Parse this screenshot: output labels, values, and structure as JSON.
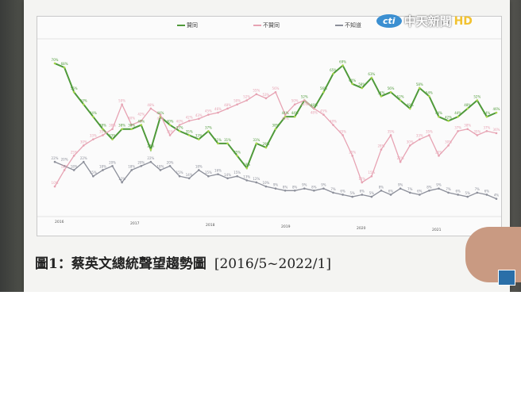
{
  "broadcaster": {
    "logo_text": "cti",
    "name": "中天新聞",
    "hd": "HD"
  },
  "figure": {
    "title": "圖1：蔡英文總統聲望趨勢圖",
    "range": "[2016/5~2022/1]"
  },
  "colors": {
    "approve": "#4f9a3a",
    "disapprove": "#e7a3b3",
    "unknown": "#8c8f9a"
  },
  "chart_data": {
    "type": "line",
    "title": "圖1：蔡英文總統聲望趨勢圖 [2016/5~2022/1]",
    "x_range": [
      "2016/5",
      "2022/1"
    ],
    "year_ticks": [
      "2016",
      "2017",
      "2018",
      "2019",
      "2020",
      "2021"
    ],
    "ylim": [
      0,
      75
    ],
    "grid": false,
    "legend_position": "top",
    "series": [
      {
        "name": "贊同",
        "color": "#4f9a3a",
        "values": [
          70,
          68,
          56,
          50,
          44,
          38,
          33,
          38,
          38,
          40,
          28,
          44,
          40,
          37,
          35,
          33,
          37,
          31,
          31,
          25,
          19,
          31,
          29,
          38,
          44,
          44,
          52,
          48,
          56,
          65,
          69,
          60,
          58,
          63,
          54,
          56,
          52,
          48,
          58,
          54,
          44,
          42,
          44,
          48,
          52,
          44,
          46
        ]
      },
      {
        "name": "不贊同",
        "color": "#e7a3b3",
        "values": [
          10,
          18,
          25,
          30,
          33,
          35,
          38,
          50,
          40,
          42,
          48,
          45,
          35,
          40,
          42,
          43,
          45,
          46,
          48,
          50,
          52,
          55,
          53,
          56,
          45,
          50,
          52,
          48,
          45,
          40,
          35,
          25,
          12,
          15,
          28,
          35,
          22,
          30,
          33,
          35,
          25,
          30,
          37,
          38,
          35,
          37,
          36
        ]
      },
      {
        "name": "不知道",
        "color": "#8c8f9a",
        "values": [
          22,
          20,
          18,
          22,
          15,
          18,
          20,
          12,
          18,
          20,
          22,
          18,
          20,
          15,
          14,
          18,
          15,
          16,
          14,
          15,
          13,
          12,
          10,
          9,
          8,
          8,
          9,
          8,
          9,
          7,
          6,
          5,
          6,
          5,
          8,
          6,
          9,
          7,
          6,
          8,
          9,
          7,
          6,
          5,
          7,
          6,
          4
        ]
      }
    ]
  }
}
